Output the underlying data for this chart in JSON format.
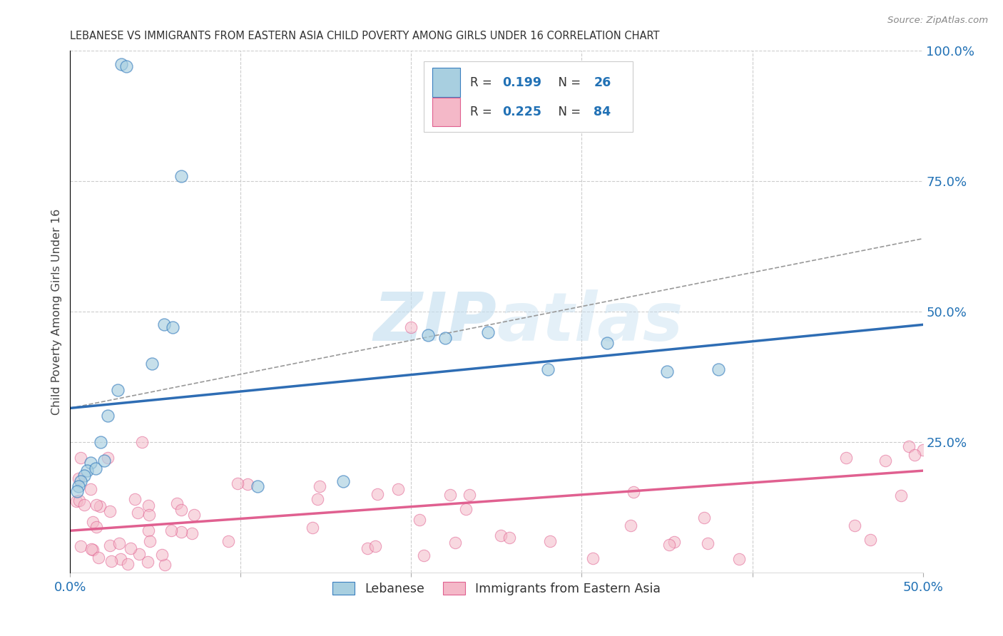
{
  "title": "LEBANESE VS IMMIGRANTS FROM EASTERN ASIA CHILD POVERTY AMONG GIRLS UNDER 16 CORRELATION CHART",
  "source": "Source: ZipAtlas.com",
  "ylabel": "Child Poverty Among Girls Under 16",
  "xlim": [
    0.0,
    0.5
  ],
  "ylim": [
    0.0,
    1.0
  ],
  "xticklabels": [
    "0.0%",
    "",
    "",
    "",
    "",
    "50.0%"
  ],
  "yticklabels_right": [
    "",
    "25.0%",
    "50.0%",
    "75.0%",
    "100.0%"
  ],
  "blue_color": "#a8cfe0",
  "pink_color": "#f4b8c8",
  "blue_edge_color": "#3a7fbf",
  "pink_edge_color": "#e06090",
  "blue_line_color": "#2e6db4",
  "pink_line_color": "#e06090",
  "blue_scatter_x": [
    0.03,
    0.033,
    0.065,
    0.055,
    0.06,
    0.048,
    0.028,
    0.022,
    0.018,
    0.012,
    0.01,
    0.008,
    0.006,
    0.005,
    0.004,
    0.015,
    0.02,
    0.11,
    0.21,
    0.22,
    0.28,
    0.315,
    0.38,
    0.245,
    0.35,
    0.16
  ],
  "blue_scatter_y": [
    0.975,
    0.97,
    0.76,
    0.475,
    0.47,
    0.4,
    0.35,
    0.3,
    0.25,
    0.21,
    0.195,
    0.185,
    0.175,
    0.165,
    0.155,
    0.2,
    0.215,
    0.165,
    0.455,
    0.45,
    0.39,
    0.44,
    0.39,
    0.46,
    0.385,
    0.175
  ],
  "blue_line_x0": 0.0,
  "blue_line_y0": 0.315,
  "blue_line_x1": 0.5,
  "blue_line_y1": 0.475,
  "pink_line_x0": 0.0,
  "pink_line_y0": 0.08,
  "pink_line_x1": 0.5,
  "pink_line_y1": 0.195,
  "dash_line_x0": 0.0,
  "dash_line_y0": 0.315,
  "dash_line_x1": 0.5,
  "dash_line_y1": 0.64,
  "watermark_text": "ZIPatlas",
  "legend_r1": "0.199",
  "legend_n1": "26",
  "legend_r2": "0.225",
  "legend_n2": "84"
}
